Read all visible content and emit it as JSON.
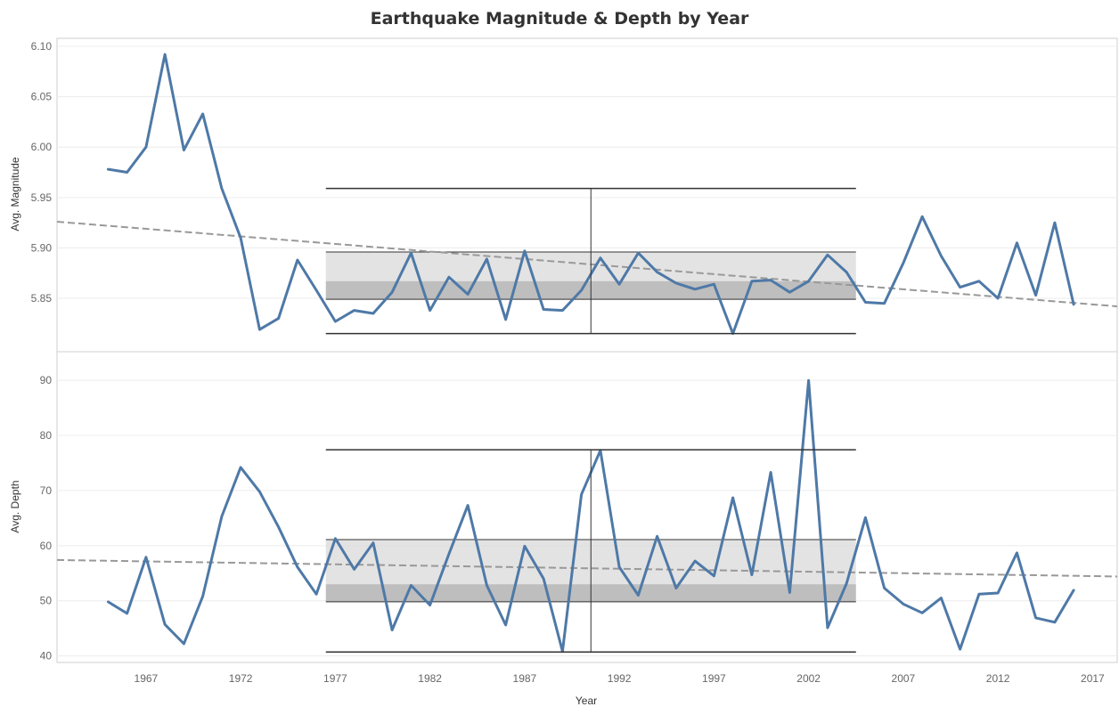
{
  "chart_data": {
    "type": "line",
    "title": "Earthquake Magnitude & Depth by Year",
    "xlabel": "Year",
    "x_ticks": [
      1967,
      1972,
      1977,
      1982,
      1987,
      1992,
      1997,
      2002,
      2007,
      2012,
      2017
    ],
    "x": [
      1965,
      1966,
      1967,
      1968,
      1969,
      1970,
      1971,
      1972,
      1973,
      1974,
      1975,
      1976,
      1977,
      1978,
      1979,
      1980,
      1981,
      1982,
      1983,
      1984,
      1985,
      1986,
      1987,
      1988,
      1989,
      1990,
      1991,
      1992,
      1993,
      1994,
      1995,
      1996,
      1997,
      1998,
      1999,
      2000,
      2001,
      2002,
      2003,
      2004,
      2005,
      2006,
      2007,
      2008,
      2009,
      2010,
      2011,
      2012,
      2013,
      2014,
      2015,
      2016
    ],
    "xlim": [
      1962.3,
      2018.3
    ],
    "panels": [
      {
        "ylabel": "Avg. Magnitude",
        "ylim": [
          5.797,
          6.108
        ],
        "y_ticks": [
          6.1,
          6.05,
          6.0,
          5.95,
          5.9,
          5.85
        ],
        "y_tick_labels": [
          "6.10",
          "6.05",
          "6.00",
          "5.95",
          "5.90",
          "5.85"
        ],
        "values": [
          5.978,
          5.975,
          6.0,
          6.092,
          5.997,
          6.033,
          5.959,
          5.91,
          5.819,
          5.83,
          5.888,
          5.858,
          5.827,
          5.838,
          5.835,
          5.856,
          5.895,
          5.838,
          5.871,
          5.854,
          5.889,
          5.829,
          5.897,
          5.839,
          5.838,
          5.858,
          5.89,
          5.864,
          5.895,
          5.876,
          5.865,
          5.859,
          5.864,
          5.815,
          5.867,
          5.868,
          5.856,
          5.867,
          5.893,
          5.876,
          5.846,
          5.845,
          5.885,
          5.931,
          5.892,
          5.861,
          5.867,
          5.85,
          5.905,
          5.853,
          5.925,
          5.844
        ],
        "trend": {
          "y_start": 5.926,
          "y_end": 5.842
        },
        "distribution_band": {
          "x_from": 1976.5,
          "x_to": 2004.5,
          "upper": 5.896,
          "middle": 5.867,
          "lower": 5.849
        },
        "whiskers": {
          "x_from": 1976.5,
          "x_to": 2004.5,
          "x_center": 1990.5,
          "top": 5.959,
          "bottom": 5.815
        }
      },
      {
        "ylabel": "Avg. Depth",
        "ylim": [
          38.8,
          95.2
        ],
        "y_ticks": [
          90,
          80,
          70,
          60,
          50,
          40
        ],
        "y_tick_labels": [
          "90",
          "80",
          "70",
          "60",
          "50",
          "40"
        ],
        "values": [
          49.8,
          47.7,
          57.9,
          45.7,
          42.2,
          50.8,
          65.3,
          74.2,
          69.8,
          63.4,
          56.1,
          51.2,
          61.3,
          55.7,
          60.5,
          44.7,
          52.8,
          49.2,
          58.5,
          67.3,
          52.8,
          45.6,
          59.9,
          54.0,
          40.8,
          69.3,
          77.3,
          56.1,
          51.0,
          61.7,
          52.3,
          57.2,
          54.5,
          68.7,
          54.7,
          73.3,
          51.5,
          90.0,
          45.1,
          53.1,
          65.1,
          52.3,
          49.4,
          47.8,
          50.5,
          41.2,
          51.2,
          51.4,
          58.7,
          46.9,
          46.1,
          51.9
        ],
        "trend": {
          "y_start": 57.4,
          "y_end": 54.4
        },
        "distribution_band": {
          "x_from": 1976.5,
          "x_to": 2004.5,
          "upper": 61.1,
          "middle": 53.0,
          "lower": 49.8
        },
        "whiskers": {
          "x_from": 1976.5,
          "x_to": 2004.5,
          "x_center": 1990.5,
          "top": 77.4,
          "bottom": 40.7
        }
      }
    ],
    "grid": true,
    "colors": {
      "series": "#4e79a7",
      "trend": "#999999",
      "band_upper": "#d9d9d9",
      "band_lower": "#a8a8a8",
      "reference": "#333333"
    }
  }
}
